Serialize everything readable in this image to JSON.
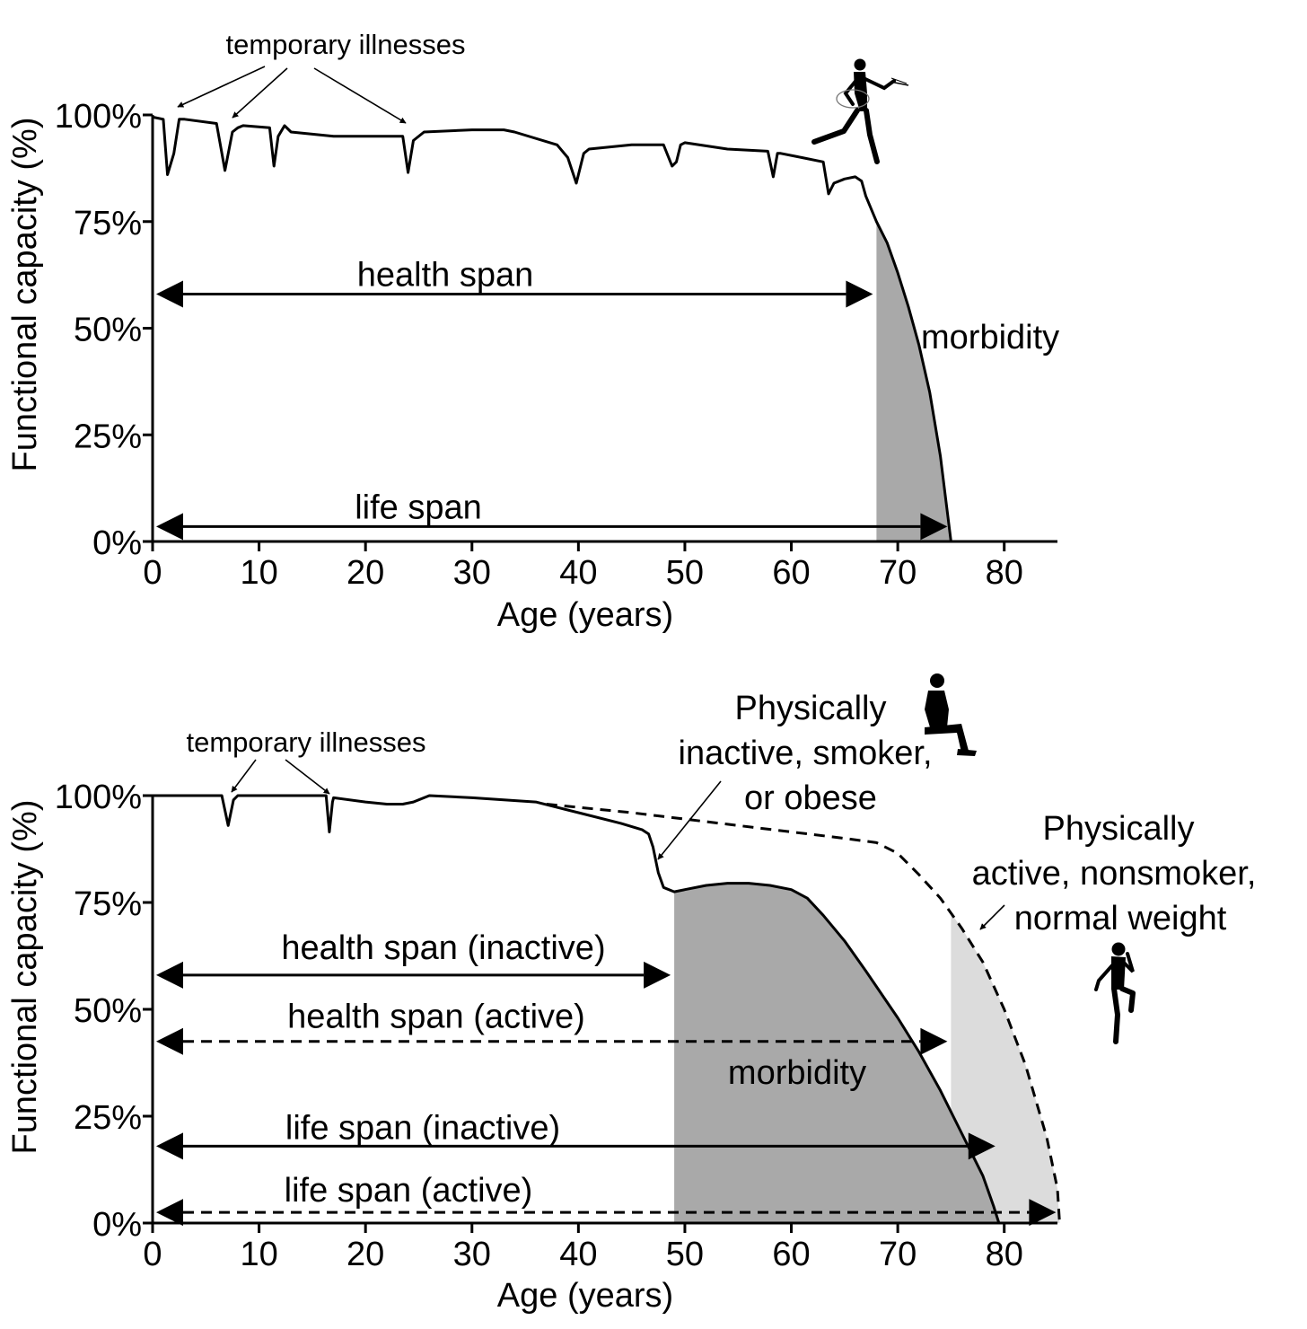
{
  "chart_data": [
    {
      "type": "line",
      "xlabel": "Age (years)",
      "ylabel": "Functional capacity (%)",
      "xlim": [
        0,
        85
      ],
      "ylim": [
        0,
        100
      ],
      "x_ticks": [
        "0",
        "10",
        "20",
        "30",
        "40",
        "50",
        "60",
        "70",
        "80"
      ],
      "y_ticks": [
        "0%",
        "25%",
        "50%",
        "75%",
        "100%"
      ],
      "series": [
        {
          "x": [
            0,
            1,
            1.4,
            2,
            2.5,
            3,
            6,
            6.8,
            7.5,
            8,
            8.5,
            11,
            11.4,
            11.8,
            12.4,
            13,
            17,
            20,
            23.5,
            24,
            24.5,
            25.5,
            30,
            33,
            34,
            38,
            39,
            39.8,
            40.5,
            41,
            45,
            48,
            48.8,
            49.2,
            49.6,
            50,
            54,
            57.8,
            58.3,
            58.7,
            59,
            61,
            63,
            63.5,
            64,
            65,
            66,
            66.6,
            67,
            68,
            69,
            70,
            71,
            72,
            73,
            74,
            74.5,
            75
          ],
          "y": [
            99.5,
            99,
            86,
            91,
            99,
            99,
            98,
            87,
            96,
            97,
            97.5,
            97,
            88,
            95,
            97.5,
            96,
            95,
            95,
            95,
            86.5,
            94,
            96,
            96.5,
            96.5,
            96,
            93,
            90,
            84,
            91,
            92,
            93,
            93,
            88,
            89,
            93,
            93.5,
            92,
            91.5,
            85.5,
            91,
            91,
            90,
            89,
            81.5,
            84,
            85,
            85.5,
            84.5,
            81,
            75,
            70,
            63,
            55,
            46,
            35,
            20,
            10,
            0
          ]
        }
      ],
      "shaded_regions": [
        {
          "label": "morbidity",
          "x_from": 68,
          "x_to": 75,
          "color": "#a9a9a9"
        }
      ],
      "annotations": {
        "temporary_illnesses": "temporary illnesses",
        "health_span": "health span",
        "life_span": "life span",
        "morbidity": "morbidity"
      },
      "spans": [
        {
          "label": "health span",
          "from": 0,
          "to": 68,
          "y": 58
        },
        {
          "label": "life span",
          "from": 0,
          "to": 75,
          "y": 3.5
        }
      ]
    },
    {
      "type": "line",
      "xlabel": "Age (years)",
      "ylabel": "Functional capacity (%)",
      "xlim": [
        0,
        85
      ],
      "ylim": [
        0,
        100
      ],
      "x_ticks": [
        "0",
        "10",
        "20",
        "30",
        "40",
        "50",
        "60",
        "70",
        "80"
      ],
      "y_ticks": [
        "0%",
        "25%",
        "50%",
        "75%",
        "100%"
      ],
      "series": [
        {
          "name": "Physically inactive, smoker, or obese",
          "style": "solid",
          "x": [
            0,
            6.5,
            7.1,
            7.6,
            8,
            16.3,
            16.6,
            16.9,
            17,
            20,
            22,
            23.5,
            24.5,
            26,
            30,
            36,
            40,
            44,
            46,
            46.6,
            47,
            47.5,
            48,
            49,
            50,
            52,
            54,
            56,
            58,
            60,
            61.5,
            63,
            65,
            67,
            70,
            72,
            74,
            76,
            78,
            79,
            79.5
          ],
          "y": [
            100,
            100,
            93,
            99,
            100,
            100,
            91.5,
            98.5,
            99.5,
            98.5,
            98,
            98,
            98.5,
            100,
            99.5,
            98.5,
            96,
            93.5,
            92,
            91,
            88,
            82,
            78.5,
            77.5,
            78,
            79,
            79.5,
            79.5,
            79,
            78,
            76,
            72,
            66,
            59,
            48,
            40,
            31,
            21,
            11,
            4,
            0
          ]
        },
        {
          "name": "Physically active, nonsmoker, normal weight",
          "style": "dashed",
          "x": [
            37,
            45,
            55,
            65,
            68,
            70,
            72,
            74,
            76,
            78,
            80,
            82,
            84,
            85,
            85.2
          ],
          "y": [
            98,
            96,
            93,
            90,
            89,
            86.5,
            81.5,
            76,
            69,
            61,
            50,
            37,
            20,
            8,
            0
          ]
        }
      ],
      "shaded_regions": [
        {
          "label": "morbidity",
          "x_from": 49,
          "x_to": 79.5,
          "color": "#a9a9a9"
        },
        {
          "label": "",
          "x_from": 75,
          "x_to": 85.2,
          "color": "#dcdcdc"
        }
      ],
      "annotations": {
        "temporary_illnesses": "temporary illnesses",
        "inactive_label": [
          "Physically",
          "inactive, smoker,",
          "or obese"
        ],
        "active_label": [
          "Physically",
          "active, nonsmoker,",
          "normal weight"
        ],
        "morbidity": "morbidity"
      },
      "spans": [
        {
          "label": "health span (inactive)",
          "from": 0,
          "to": 49,
          "y": 58,
          "style": "solid"
        },
        {
          "label": "health span (active)",
          "from": 0,
          "to": 75,
          "y": 42.5,
          "style": "dashed"
        },
        {
          "label": "life span (inactive)",
          "from": 0,
          "to": 79.5,
          "y": 18,
          "style": "solid"
        },
        {
          "label": "life span (active)",
          "from": 0,
          "to": 85.2,
          "y": 2.5,
          "style": "dashed"
        }
      ]
    }
  ]
}
